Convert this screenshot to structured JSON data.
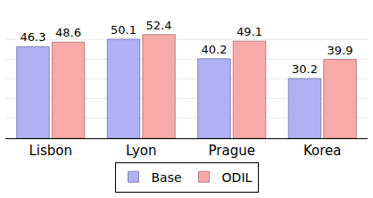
{
  "chart_data": {
    "type": "bar",
    "categories": [
      "Lisbon",
      "Lyon",
      "Prague",
      "Korea"
    ],
    "series": [
      {
        "name": "Base",
        "color": "#b0b0f4",
        "values": [
          46.3,
          50.1,
          40.2,
          30.2
        ]
      },
      {
        "name": "ODIL",
        "color": "#f8aaaa",
        "values": [
          48.6,
          52.4,
          49.1,
          39.9
        ]
      }
    ],
    "ylim": [
      0,
      60
    ],
    "yticks": [
      0,
      10,
      20,
      30,
      40,
      50,
      60
    ],
    "grid": true,
    "legend": "bottom",
    "data_labels": true,
    "tick_labels": "x"
  }
}
